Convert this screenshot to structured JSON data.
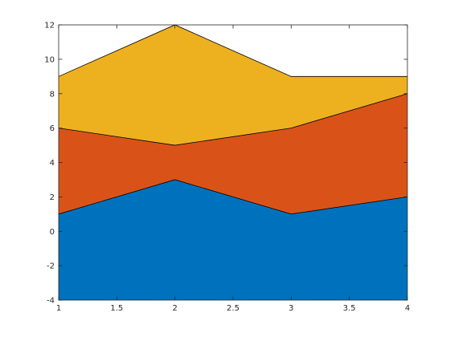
{
  "chart_data": {
    "type": "area",
    "stacked": true,
    "x": [
      1,
      2,
      3,
      4
    ],
    "series": [
      {
        "values": [
          1,
          3,
          1,
          2
        ],
        "color": "#0072BD"
      },
      {
        "values": [
          5,
          2,
          5,
          6
        ],
        "color": "#D95319"
      },
      {
        "values": [
          3,
          7,
          3,
          1
        ],
        "color": "#EDB120"
      }
    ],
    "baseline": -4,
    "xlim": [
      1,
      4
    ],
    "ylim": [
      -4,
      12
    ],
    "xticks": [
      1,
      1.5,
      2,
      2.5,
      3,
      3.5,
      4
    ],
    "yticks": [
      -4,
      -2,
      0,
      2,
      4,
      6,
      8,
      10,
      12
    ],
    "xtick_labels": [
      "1",
      "1.5",
      "2",
      "2.5",
      "3",
      "3.5",
      "4"
    ],
    "ytick_labels": [
      "-4",
      "-2",
      "0",
      "2",
      "4",
      "6",
      "8",
      "10",
      "12"
    ],
    "title": "",
    "xlabel": "",
    "ylabel": "",
    "grid": false,
    "box": true
  }
}
